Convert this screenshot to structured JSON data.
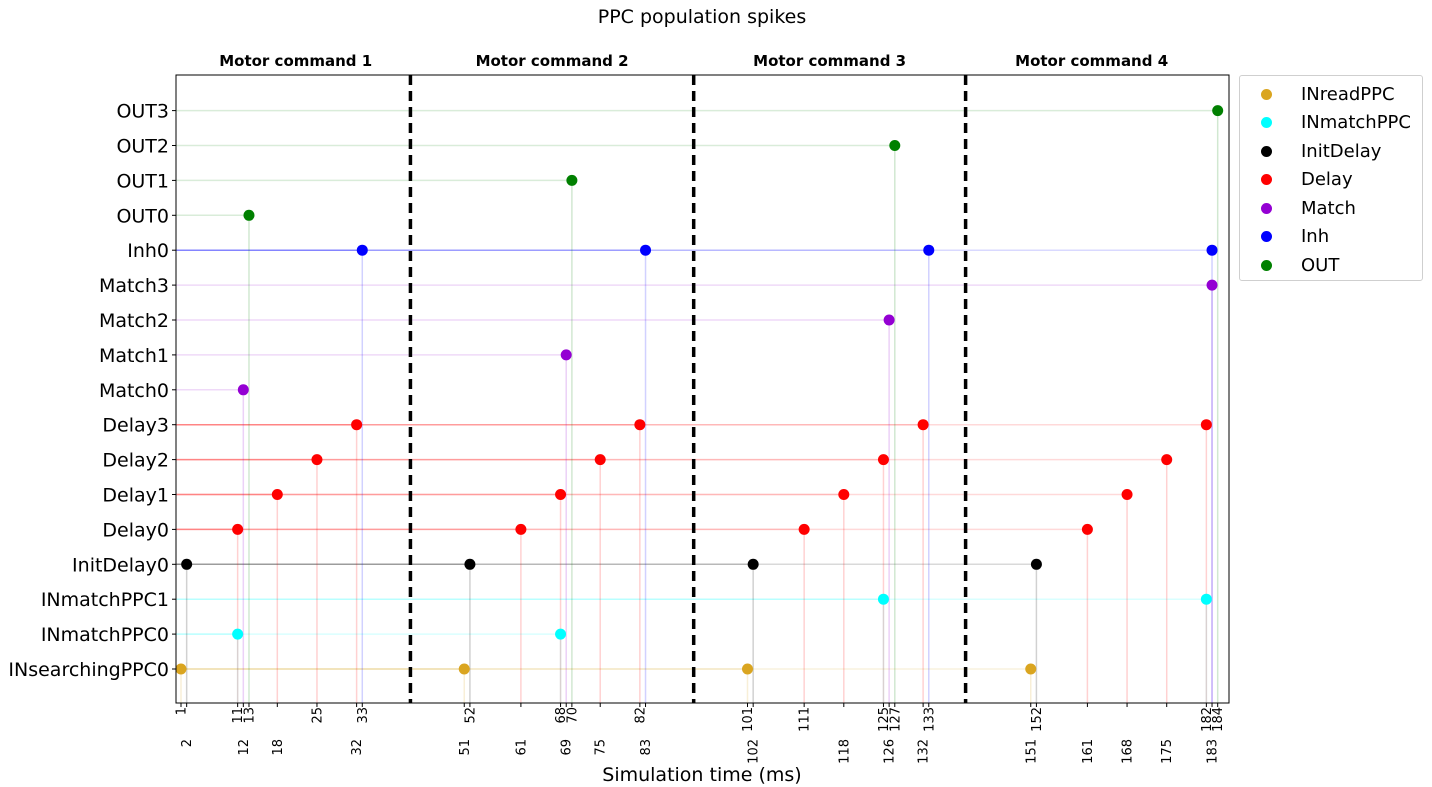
{
  "chart_data": {
    "type": "scatter",
    "title": "PPC population spikes",
    "xlabel": "Simulation time (ms)",
    "ylabel": "",
    "xlim": [
      0,
      184
    ],
    "grid": false,
    "legend_position": "outside-right-top",
    "y_categories": [
      "INsearchingPPC0",
      "INmatchPPC0",
      "INmatchPPC1",
      "InitDelay0",
      "Delay0",
      "Delay1",
      "Delay2",
      "Delay3",
      "Match0",
      "Match1",
      "Match2",
      "Match3",
      "Inh0",
      "OUT0",
      "OUT1",
      "OUT2",
      "OUT3"
    ],
    "phases": [
      {
        "label": "Motor command 1"
      },
      {
        "label": "Motor command 2"
      },
      {
        "label": "Motor command 3"
      },
      {
        "label": "Motor command 4"
      }
    ],
    "phase_boundaries": [
      41.5,
      91.5,
      139.5
    ],
    "x_ticks_top": [
      1,
      11,
      13,
      25,
      33,
      52,
      68,
      70,
      82,
      101,
      111,
      125,
      127,
      133,
      152,
      182,
      184
    ],
    "x_ticks_bottom": [
      2,
      12,
      18,
      32,
      51,
      61,
      69,
      75,
      83,
      102,
      118,
      126,
      132,
      151,
      161,
      168,
      175,
      183
    ],
    "series": [
      {
        "name": "INreadPPC",
        "color": "#daa520",
        "points": [
          {
            "x": 1,
            "y": "INsearchingPPC0"
          },
          {
            "x": 51,
            "y": "INsearchingPPC0"
          },
          {
            "x": 101,
            "y": "INsearchingPPC0"
          },
          {
            "x": 151,
            "y": "INsearchingPPC0"
          }
        ]
      },
      {
        "name": "INmatchPPC",
        "color": "#00ffff",
        "points": [
          {
            "x": 11,
            "y": "INmatchPPC0"
          },
          {
            "x": 68,
            "y": "INmatchPPC0"
          },
          {
            "x": 125,
            "y": "INmatchPPC1"
          },
          {
            "x": 182,
            "y": "INmatchPPC1"
          }
        ]
      },
      {
        "name": "InitDelay",
        "color": "#000000",
        "points": [
          {
            "x": 2,
            "y": "InitDelay0"
          },
          {
            "x": 52,
            "y": "InitDelay0"
          },
          {
            "x": 102,
            "y": "InitDelay0"
          },
          {
            "x": 152,
            "y": "InitDelay0"
          }
        ]
      },
      {
        "name": "Delay",
        "color": "#ff0000",
        "points": [
          {
            "x": 11,
            "y": "Delay0"
          },
          {
            "x": 18,
            "y": "Delay1"
          },
          {
            "x": 25,
            "y": "Delay2"
          },
          {
            "x": 32,
            "y": "Delay3"
          },
          {
            "x": 61,
            "y": "Delay0"
          },
          {
            "x": 68,
            "y": "Delay1"
          },
          {
            "x": 75,
            "y": "Delay2"
          },
          {
            "x": 82,
            "y": "Delay3"
          },
          {
            "x": 111,
            "y": "Delay0"
          },
          {
            "x": 118,
            "y": "Delay1"
          },
          {
            "x": 125,
            "y": "Delay2"
          },
          {
            "x": 132,
            "y": "Delay3"
          },
          {
            "x": 161,
            "y": "Delay0"
          },
          {
            "x": 168,
            "y": "Delay1"
          },
          {
            "x": 175,
            "y": "Delay2"
          },
          {
            "x": 182,
            "y": "Delay3"
          }
        ]
      },
      {
        "name": "Match",
        "color": "#9400d3",
        "points": [
          {
            "x": 12,
            "y": "Match0"
          },
          {
            "x": 69,
            "y": "Match1"
          },
          {
            "x": 126,
            "y": "Match2"
          },
          {
            "x": 183,
            "y": "Match3"
          }
        ]
      },
      {
        "name": "Inh",
        "color": "#0000ff",
        "points": [
          {
            "x": 33,
            "y": "Inh0"
          },
          {
            "x": 83,
            "y": "Inh0"
          },
          {
            "x": 133,
            "y": "Inh0"
          },
          {
            "x": 183,
            "y": "Inh0"
          }
        ]
      },
      {
        "name": "OUT",
        "color": "#008000",
        "points": [
          {
            "x": 13,
            "y": "OUT0"
          },
          {
            "x": 70,
            "y": "OUT1"
          },
          {
            "x": 127,
            "y": "OUT2"
          },
          {
            "x": 184,
            "y": "OUT3"
          }
        ]
      }
    ]
  }
}
